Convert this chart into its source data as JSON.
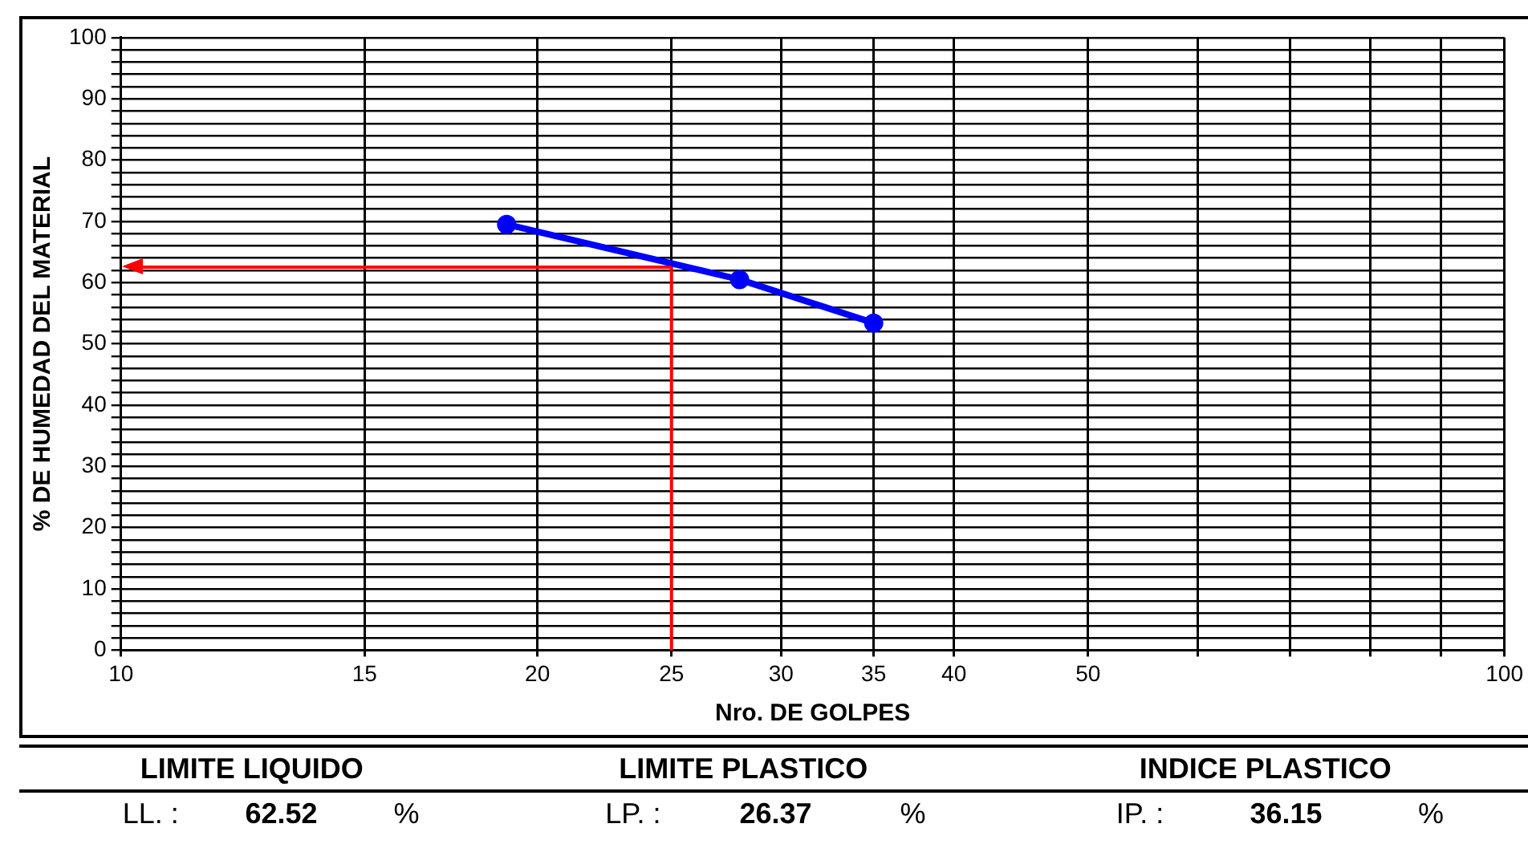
{
  "chart_data": {
    "type": "line",
    "xlabel": "Nro. DE GOLPES",
    "ylabel": "% DE HUMEDAD DEL MATERIAL",
    "log": "x",
    "xlim": [
      10,
      100
    ],
    "xticks": [
      10,
      15,
      20,
      25,
      30,
      35,
      40,
      50,
      {
        "value": 60,
        "label": null
      },
      {
        "value": 70,
        "label": null
      },
      {
        "value": 80,
        "label": null
      },
      {
        "value": 90,
        "label": null
      },
      100
    ],
    "ylim": [
      0,
      100
    ],
    "yticks": [
      0,
      {
        "value": 2,
        "label": null
      },
      {
        "value": 4,
        "label": null
      },
      {
        "value": 6,
        "label": null
      },
      {
        "value": 8,
        "label": null
      },
      10,
      {
        "value": 12,
        "label": null
      },
      {
        "value": 14,
        "label": null
      },
      {
        "value": 16,
        "label": null
      },
      {
        "value": 18,
        "label": null
      },
      20,
      {
        "value": 22,
        "label": null
      },
      {
        "value": 24,
        "label": null
      },
      {
        "value": 26,
        "label": null
      },
      {
        "value": 28,
        "label": null
      },
      30,
      {
        "value": 32,
        "label": null
      },
      {
        "value": 34,
        "label": null
      },
      {
        "value": 36,
        "label": null
      },
      {
        "value": 38,
        "label": null
      },
      40,
      {
        "value": 42,
        "label": null
      },
      {
        "value": 44,
        "label": null
      },
      {
        "value": 46,
        "label": null
      },
      {
        "value": 48,
        "label": null
      },
      50,
      {
        "value": 52,
        "label": null
      },
      {
        "value": 54,
        "label": null
      },
      {
        "value": 56,
        "label": null
      },
      {
        "value": 58,
        "label": null
      },
      60,
      {
        "value": 62,
        "label": null
      },
      {
        "value": 64,
        "label": null
      },
      {
        "value": 66,
        "label": null
      },
      {
        "value": 68,
        "label": null
      },
      70,
      {
        "value": 72,
        "label": null
      },
      {
        "value": 74,
        "label": null
      },
      {
        "value": 76,
        "label": null
      },
      {
        "value": 78,
        "label": null
      },
      80,
      {
        "value": 82,
        "label": null
      },
      {
        "value": 84,
        "label": null
      },
      {
        "value": 86,
        "label": null
      },
      {
        "value": 88,
        "label": null
      },
      90,
      {
        "value": 92,
        "label": null
      },
      {
        "value": 94,
        "label": null
      },
      {
        "value": 96,
        "label": null
      },
      {
        "value": 98,
        "label": null
      },
      100
    ],
    "grid": true,
    "marker": "circle",
    "line_style": "solid",
    "legend": false,
    "series": [
      {
        "color": "#0000ff",
        "x": [
          19,
          28,
          35
        ],
        "values": [
          69.5,
          60.5,
          53.4
        ]
      }
    ],
    "ref_lines": [
      {
        "axis": "x",
        "value": 25,
        "color": "#ff0000"
      },
      {
        "axis": "y",
        "value": 62.52,
        "color": "#ff0000"
      }
    ],
    "annotations": [
      "LIMITE LIQUIDO",
      "LIMITE PLASTICO",
      "INDICE PLASTICO",
      "LL. :",
      "62.52",
      "%",
      "LP. :",
      "26.37",
      "%",
      "IP. :",
      "36.15",
      "%"
    ]
  }
}
